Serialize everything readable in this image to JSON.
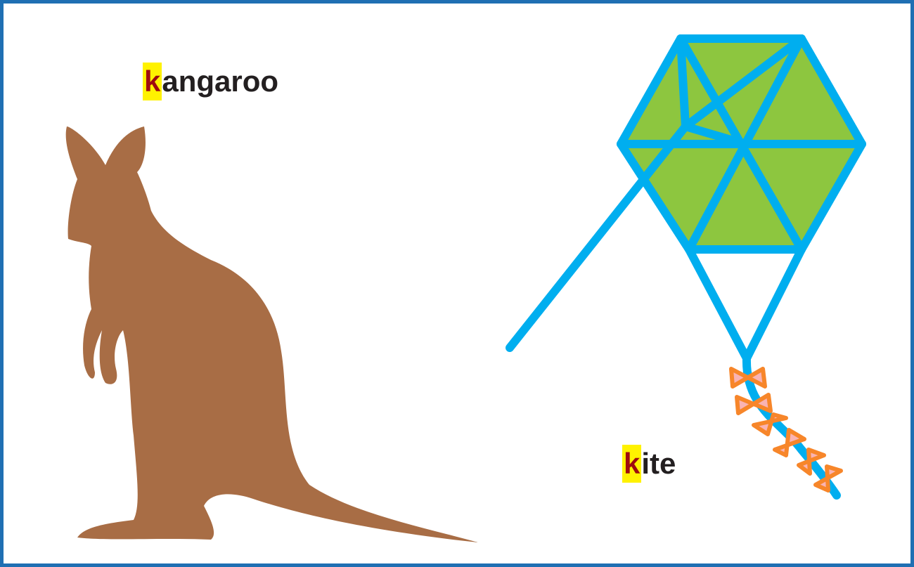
{
  "words": [
    {
      "initial": "k",
      "rest": "angaroo"
    },
    {
      "initial": "k",
      "rest": "ite"
    }
  ]
}
